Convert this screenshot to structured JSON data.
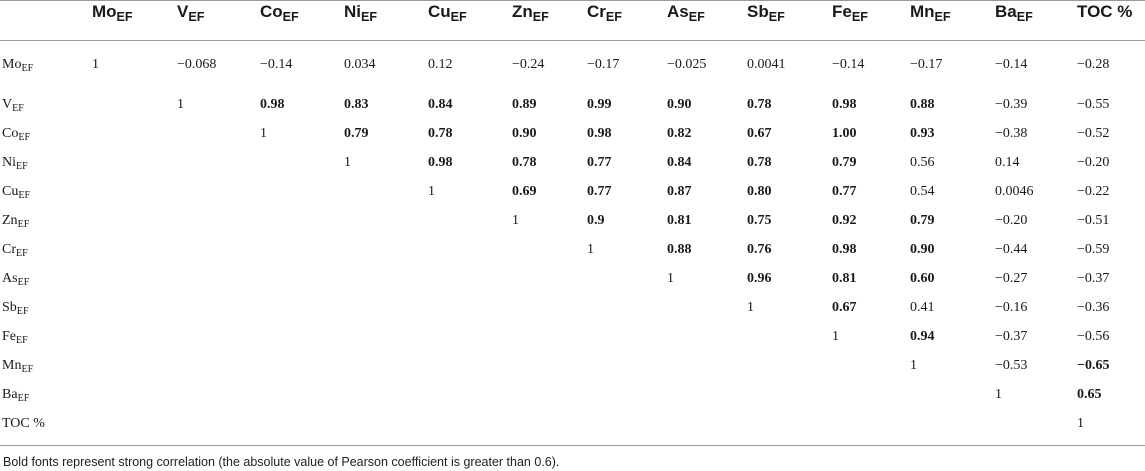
{
  "columns": [
    {
      "base": "",
      "sub": ""
    },
    {
      "base": "Mo",
      "sub": "EF"
    },
    {
      "base": "V",
      "sub": "EF"
    },
    {
      "base": "Co",
      "sub": "EF"
    },
    {
      "base": "Ni",
      "sub": "EF"
    },
    {
      "base": "Cu",
      "sub": "EF"
    },
    {
      "base": "Zn",
      "sub": "EF"
    },
    {
      "base": "Cr",
      "sub": "EF"
    },
    {
      "base": "As",
      "sub": "EF"
    },
    {
      "base": "Sb",
      "sub": "EF"
    },
    {
      "base": "Fe",
      "sub": "EF"
    },
    {
      "base": "Mn",
      "sub": "EF"
    },
    {
      "base": "Ba",
      "sub": "EF"
    },
    {
      "base": "TOC %",
      "sub": ""
    }
  ],
  "rows": [
    {
      "base": "Mo",
      "sub": "EF",
      "cells": [
        {
          "v": "1",
          "b": false
        },
        {
          "v": "−0.068",
          "b": false
        },
        {
          "v": "−0.14",
          "b": false
        },
        {
          "v": "0.034",
          "b": false
        },
        {
          "v": "0.12",
          "b": false
        },
        {
          "v": "−0.24",
          "b": false
        },
        {
          "v": "−0.17",
          "b": false
        },
        {
          "v": "−0.025",
          "b": false
        },
        {
          "v": "0.0041",
          "b": false
        },
        {
          "v": "−0.14",
          "b": false
        },
        {
          "v": "−0.17",
          "b": false
        },
        {
          "v": "−0.14",
          "b": false
        },
        {
          "v": "−0.28",
          "b": false
        }
      ]
    },
    {
      "base": "V",
      "sub": "EF",
      "cells": [
        {
          "v": "",
          "b": false
        },
        {
          "v": "1",
          "b": false
        },
        {
          "v": "0.98",
          "b": true
        },
        {
          "v": "0.83",
          "b": true
        },
        {
          "v": "0.84",
          "b": true
        },
        {
          "v": "0.89",
          "b": true
        },
        {
          "v": "0.99",
          "b": true
        },
        {
          "v": "0.90",
          "b": true
        },
        {
          "v": "0.78",
          "b": true
        },
        {
          "v": "0.98",
          "b": true
        },
        {
          "v": "0.88",
          "b": true
        },
        {
          "v": "−0.39",
          "b": false
        },
        {
          "v": "−0.55",
          "b": false
        }
      ]
    },
    {
      "base": "Co",
      "sub": "EF",
      "cells": [
        {
          "v": "",
          "b": false
        },
        {
          "v": "",
          "b": false
        },
        {
          "v": "1",
          "b": false
        },
        {
          "v": "0.79",
          "b": true
        },
        {
          "v": "0.78",
          "b": true
        },
        {
          "v": "0.90",
          "b": true
        },
        {
          "v": "0.98",
          "b": true
        },
        {
          "v": "0.82",
          "b": true
        },
        {
          "v": "0.67",
          "b": true
        },
        {
          "v": "1.00",
          "b": true
        },
        {
          "v": "0.93",
          "b": true
        },
        {
          "v": "−0.38",
          "b": false
        },
        {
          "v": "−0.52",
          "b": false
        }
      ]
    },
    {
      "base": "Ni",
      "sub": "EF",
      "cells": [
        {
          "v": "",
          "b": false
        },
        {
          "v": "",
          "b": false
        },
        {
          "v": "",
          "b": false
        },
        {
          "v": "1",
          "b": false
        },
        {
          "v": "0.98",
          "b": true
        },
        {
          "v": "0.78",
          "b": true
        },
        {
          "v": "0.77",
          "b": true
        },
        {
          "v": "0.84",
          "b": true
        },
        {
          "v": "0.78",
          "b": true
        },
        {
          "v": "0.79",
          "b": true
        },
        {
          "v": "0.56",
          "b": false
        },
        {
          "v": "0.14",
          "b": false
        },
        {
          "v": "−0.20",
          "b": false
        }
      ]
    },
    {
      "base": "Cu",
      "sub": "EF",
      "cells": [
        {
          "v": "",
          "b": false
        },
        {
          "v": "",
          "b": false
        },
        {
          "v": "",
          "b": false
        },
        {
          "v": "",
          "b": false
        },
        {
          "v": "1",
          "b": false
        },
        {
          "v": "0.69",
          "b": true
        },
        {
          "v": "0.77",
          "b": true
        },
        {
          "v": "0.87",
          "b": true
        },
        {
          "v": "0.80",
          "b": true
        },
        {
          "v": "0.77",
          "b": true
        },
        {
          "v": "0.54",
          "b": false
        },
        {
          "v": "0.0046",
          "b": false
        },
        {
          "v": "−0.22",
          "b": false
        }
      ]
    },
    {
      "base": "Zn",
      "sub": "EF",
      "cells": [
        {
          "v": "",
          "b": false
        },
        {
          "v": "",
          "b": false
        },
        {
          "v": "",
          "b": false
        },
        {
          "v": "",
          "b": false
        },
        {
          "v": "",
          "b": false
        },
        {
          "v": "1",
          "b": false
        },
        {
          "v": "0.9",
          "b": true
        },
        {
          "v": "0.81",
          "b": true
        },
        {
          "v": "0.75",
          "b": true
        },
        {
          "v": "0.92",
          "b": true
        },
        {
          "v": "0.79",
          "b": true
        },
        {
          "v": "−0.20",
          "b": false
        },
        {
          "v": "−0.51",
          "b": false
        }
      ]
    },
    {
      "base": "Cr",
      "sub": "EF",
      "cells": [
        {
          "v": "",
          "b": false
        },
        {
          "v": "",
          "b": false
        },
        {
          "v": "",
          "b": false
        },
        {
          "v": "",
          "b": false
        },
        {
          "v": "",
          "b": false
        },
        {
          "v": "",
          "b": false
        },
        {
          "v": "1",
          "b": false
        },
        {
          "v": "0.88",
          "b": true
        },
        {
          "v": "0.76",
          "b": true
        },
        {
          "v": "0.98",
          "b": true
        },
        {
          "v": "0.90",
          "b": true
        },
        {
          "v": "−0.44",
          "b": false
        },
        {
          "v": "−0.59",
          "b": false
        }
      ]
    },
    {
      "base": "As",
      "sub": "EF",
      "cells": [
        {
          "v": "",
          "b": false
        },
        {
          "v": "",
          "b": false
        },
        {
          "v": "",
          "b": false
        },
        {
          "v": "",
          "b": false
        },
        {
          "v": "",
          "b": false
        },
        {
          "v": "",
          "b": false
        },
        {
          "v": "",
          "b": false
        },
        {
          "v": "1",
          "b": false
        },
        {
          "v": "0.96",
          "b": true
        },
        {
          "v": "0.81",
          "b": true
        },
        {
          "v": "0.60",
          "b": true
        },
        {
          "v": "−0.27",
          "b": false
        },
        {
          "v": "−0.37",
          "b": false
        }
      ]
    },
    {
      "base": "Sb",
      "sub": "EF",
      "cells": [
        {
          "v": "",
          "b": false
        },
        {
          "v": "",
          "b": false
        },
        {
          "v": "",
          "b": false
        },
        {
          "v": "",
          "b": false
        },
        {
          "v": "",
          "b": false
        },
        {
          "v": "",
          "b": false
        },
        {
          "v": "",
          "b": false
        },
        {
          "v": "",
          "b": false
        },
        {
          "v": "1",
          "b": false
        },
        {
          "v": "0.67",
          "b": true
        },
        {
          "v": "0.41",
          "b": false
        },
        {
          "v": "−0.16",
          "b": false
        },
        {
          "v": "−0.36",
          "b": false
        }
      ]
    },
    {
      "base": "Fe",
      "sub": "EF",
      "cells": [
        {
          "v": "",
          "b": false
        },
        {
          "v": "",
          "b": false
        },
        {
          "v": "",
          "b": false
        },
        {
          "v": "",
          "b": false
        },
        {
          "v": "",
          "b": false
        },
        {
          "v": "",
          "b": false
        },
        {
          "v": "",
          "b": false
        },
        {
          "v": "",
          "b": false
        },
        {
          "v": "",
          "b": false
        },
        {
          "v": "1",
          "b": false
        },
        {
          "v": "0.94",
          "b": true
        },
        {
          "v": "−0.37",
          "b": false
        },
        {
          "v": "−0.56",
          "b": false
        }
      ]
    },
    {
      "base": "Mn",
      "sub": "EF",
      "cells": [
        {
          "v": "",
          "b": false
        },
        {
          "v": "",
          "b": false
        },
        {
          "v": "",
          "b": false
        },
        {
          "v": "",
          "b": false
        },
        {
          "v": "",
          "b": false
        },
        {
          "v": "",
          "b": false
        },
        {
          "v": "",
          "b": false
        },
        {
          "v": "",
          "b": false
        },
        {
          "v": "",
          "b": false
        },
        {
          "v": "",
          "b": false
        },
        {
          "v": "1",
          "b": false
        },
        {
          "v": "−0.53",
          "b": false
        },
        {
          "v": "−0.65",
          "b": true
        }
      ]
    },
    {
      "base": "Ba",
      "sub": "EF",
      "cells": [
        {
          "v": "",
          "b": false
        },
        {
          "v": "",
          "b": false
        },
        {
          "v": "",
          "b": false
        },
        {
          "v": "",
          "b": false
        },
        {
          "v": "",
          "b": false
        },
        {
          "v": "",
          "b": false
        },
        {
          "v": "",
          "b": false
        },
        {
          "v": "",
          "b": false
        },
        {
          "v": "",
          "b": false
        },
        {
          "v": "",
          "b": false
        },
        {
          "v": "",
          "b": false
        },
        {
          "v": "1",
          "b": false
        },
        {
          "v": "0.65",
          "b": true
        }
      ]
    },
    {
      "base": "TOC %",
      "sub": "",
      "cells": [
        {
          "v": "",
          "b": false
        },
        {
          "v": "",
          "b": false
        },
        {
          "v": "",
          "b": false
        },
        {
          "v": "",
          "b": false
        },
        {
          "v": "",
          "b": false
        },
        {
          "v": "",
          "b": false
        },
        {
          "v": "",
          "b": false
        },
        {
          "v": "",
          "b": false
        },
        {
          "v": "",
          "b": false
        },
        {
          "v": "",
          "b": false
        },
        {
          "v": "",
          "b": false
        },
        {
          "v": "",
          "b": false
        },
        {
          "v": "1",
          "b": false
        }
      ]
    }
  ],
  "footnote": "Bold fonts represent strong correlation (the absolute value of Pearson coefficient is greater than 0.6)."
}
